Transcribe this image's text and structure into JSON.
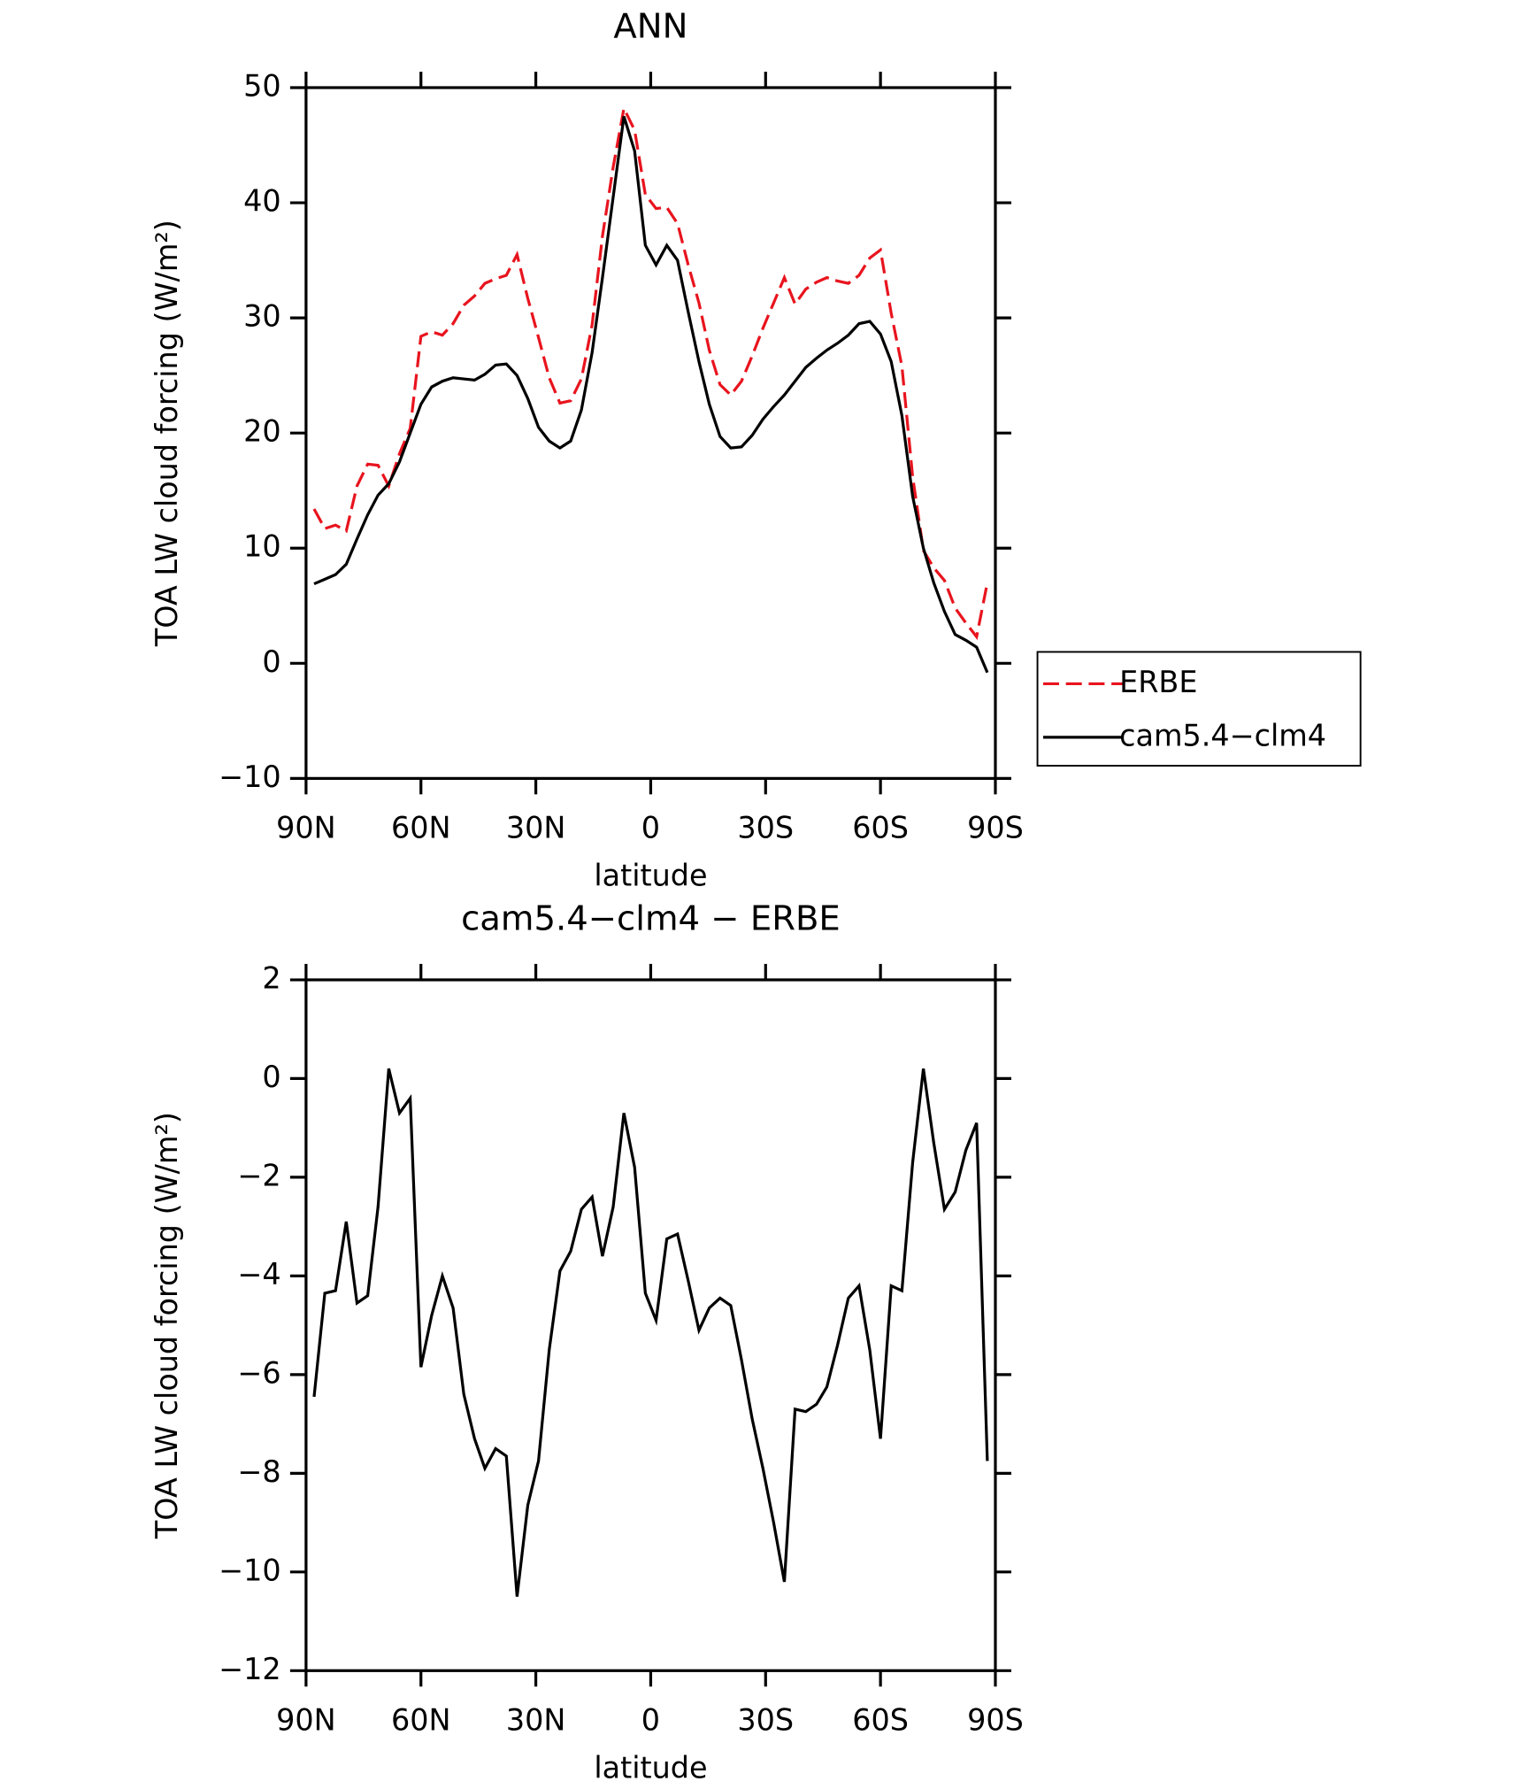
{
  "chart_data": [
    {
      "type": "line",
      "title": "ANN",
      "xlabel": "latitude",
      "ylabel": "TOA LW cloud forcing (W/m²)",
      "x": [
        87.9,
        85.1,
        82.3,
        79.5,
        76.7,
        73.9,
        71.2,
        68.4,
        65.6,
        62.8,
        60.0,
        57.2,
        54.4,
        51.6,
        48.8,
        46.0,
        43.3,
        40.5,
        37.7,
        34.9,
        32.1,
        29.3,
        26.5,
        23.7,
        20.9,
        18.1,
        15.3,
        12.6,
        9.8,
        7.0,
        4.2,
        1.4,
        -1.4,
        -4.2,
        -7.0,
        -9.8,
        -12.6,
        -15.3,
        -18.1,
        -20.9,
        -23.7,
        -26.5,
        -29.3,
        -32.1,
        -34.9,
        -37.7,
        -40.5,
        -43.3,
        -46.0,
        -48.8,
        -51.6,
        -54.4,
        -57.2,
        -60.0,
        -62.8,
        -65.6,
        -68.4,
        -71.2,
        -73.9,
        -76.7,
        -79.5,
        -82.3,
        -85.1,
        -87.9
      ],
      "series": [
        {
          "name": "ERBE",
          "color": "#e8141e",
          "dash": true,
          "values": [
            13.4,
            11.7,
            12.0,
            11.5,
            15.4,
            17.3,
            17.2,
            15.4,
            18.2,
            20.4,
            28.4,
            28.8,
            28.5,
            29.5,
            31.1,
            31.9,
            33.0,
            33.4,
            33.7,
            35.5,
            31.7,
            28.3,
            24.8,
            22.6,
            22.8,
            24.7,
            29.4,
            37.1,
            43.1,
            48.2,
            46.3,
            40.7,
            39.5,
            39.6,
            38.2,
            34.6,
            31.3,
            27.2,
            24.2,
            23.3,
            24.5,
            26.7,
            29.1,
            31.3,
            33.5,
            31.2,
            32.5,
            33.1,
            33.5,
            33.2,
            33.0,
            33.7,
            35.2,
            35.9,
            30.4,
            25.8,
            16.2,
            9.8,
            8.3,
            7.2,
            4.8,
            3.5,
            2.3,
            7.0
          ]
        },
        {
          "name": "cam5.4−clm4",
          "color": "#000000",
          "dash": false,
          "values": [
            6.9,
            7.3,
            7.7,
            8.6,
            10.8,
            12.9,
            14.6,
            15.6,
            17.5,
            20.0,
            22.5,
            24.0,
            24.5,
            24.8,
            24.7,
            24.6,
            25.1,
            25.9,
            26.0,
            25.0,
            23.0,
            20.5,
            19.3,
            18.7,
            19.3,
            22.0,
            27.0,
            33.5,
            40.5,
            47.5,
            44.5,
            36.3,
            34.6,
            36.3,
            35.0,
            30.5,
            26.2,
            22.5,
            19.7,
            18.7,
            18.8,
            19.8,
            21.2,
            22.3,
            23.3,
            24.5,
            25.7,
            26.5,
            27.2,
            27.8,
            28.5,
            29.5,
            29.7,
            28.6,
            26.2,
            21.5,
            14.5,
            10.0,
            7.0,
            4.5,
            2.5,
            2.0,
            1.4,
            -0.8
          ]
        }
      ],
      "xlim": [
        90,
        -90
      ],
      "xticks": [
        {
          "value": 90,
          "label": "90N"
        },
        {
          "value": 60,
          "label": "60N"
        },
        {
          "value": 30,
          "label": "30N"
        },
        0,
        {
          "value": -30,
          "label": "30S"
        },
        {
          "value": -60,
          "label": "60S"
        },
        {
          "value": -90,
          "label": "90S"
        }
      ],
      "ylim": [
        -10,
        50
      ],
      "yticks": [
        {
          "value": -10,
          "label": "−10"
        },
        0,
        10,
        20,
        30,
        40,
        50
      ],
      "legend": "right"
    },
    {
      "type": "line",
      "title": "cam5.4−clm4 − ERBE",
      "xlabel": "latitude",
      "ylabel": "TOA LW cloud forcing (W/m²)",
      "x": [
        87.9,
        85.1,
        82.3,
        79.5,
        76.7,
        73.9,
        71.2,
        68.4,
        65.6,
        62.8,
        60.0,
        57.2,
        54.4,
        51.6,
        48.8,
        46.0,
        43.3,
        40.5,
        37.7,
        34.9,
        32.1,
        29.3,
        26.5,
        23.7,
        20.9,
        18.1,
        15.3,
        12.6,
        9.8,
        7.0,
        4.2,
        1.4,
        -1.4,
        -4.2,
        -7.0,
        -9.8,
        -12.6,
        -15.3,
        -18.1,
        -20.9,
        -23.7,
        -26.5,
        -29.3,
        -32.1,
        -34.9,
        -37.7,
        -40.5,
        -43.3,
        -46.0,
        -48.8,
        -51.6,
        -54.4,
        -57.2,
        -60.0,
        -62.8,
        -65.6,
        -68.4,
        -71.2,
        -73.9,
        -76.7,
        -79.5,
        -82.3,
        -85.1,
        -87.9
      ],
      "color": "#000000",
      "values": [
        -6.45,
        -4.35,
        -4.3,
        -2.9,
        -4.55,
        -4.4,
        -2.6,
        0.2,
        -0.7,
        -0.4,
        -5.85,
        -4.8,
        -4.0,
        -4.65,
        -6.4,
        -7.3,
        -7.9,
        -7.5,
        -7.65,
        -10.5,
        -8.65,
        -7.75,
        -5.5,
        -3.9,
        -3.5,
        -2.65,
        -2.4,
        -3.6,
        -2.6,
        -0.7,
        -1.8,
        -4.35,
        -4.9,
        -3.25,
        -3.15,
        -4.1,
        -5.1,
        -4.65,
        -4.45,
        -4.6,
        -5.7,
        -6.9,
        -7.9,
        -9.0,
        -10.2,
        -6.7,
        -6.75,
        -6.6,
        -6.25,
        -5.4,
        -4.45,
        -4.2,
        -5.5,
        -7.3,
        -4.2,
        -4.3,
        -1.7,
        0.2,
        -1.3,
        -2.65,
        -2.3,
        -1.45,
        -0.9,
        -7.75
      ],
      "xlim": [
        90,
        -90
      ],
      "xticks": [
        {
          "value": 90,
          "label": "90N"
        },
        {
          "value": 60,
          "label": "60N"
        },
        {
          "value": 30,
          "label": "30N"
        },
        0,
        {
          "value": -30,
          "label": "30S"
        },
        {
          "value": -60,
          "label": "60S"
        },
        {
          "value": -90,
          "label": "90S"
        }
      ],
      "ylim": [
        -12,
        2
      ],
      "yticks": [
        {
          "value": -12,
          "label": "−12"
        },
        {
          "value": -10,
          "label": "−10"
        },
        {
          "value": -8,
          "label": "−8"
        },
        {
          "value": -6,
          "label": "−6"
        },
        {
          "value": -4,
          "label": "−4"
        },
        {
          "value": -2,
          "label": "−2"
        },
        0,
        2
      ]
    }
  ]
}
